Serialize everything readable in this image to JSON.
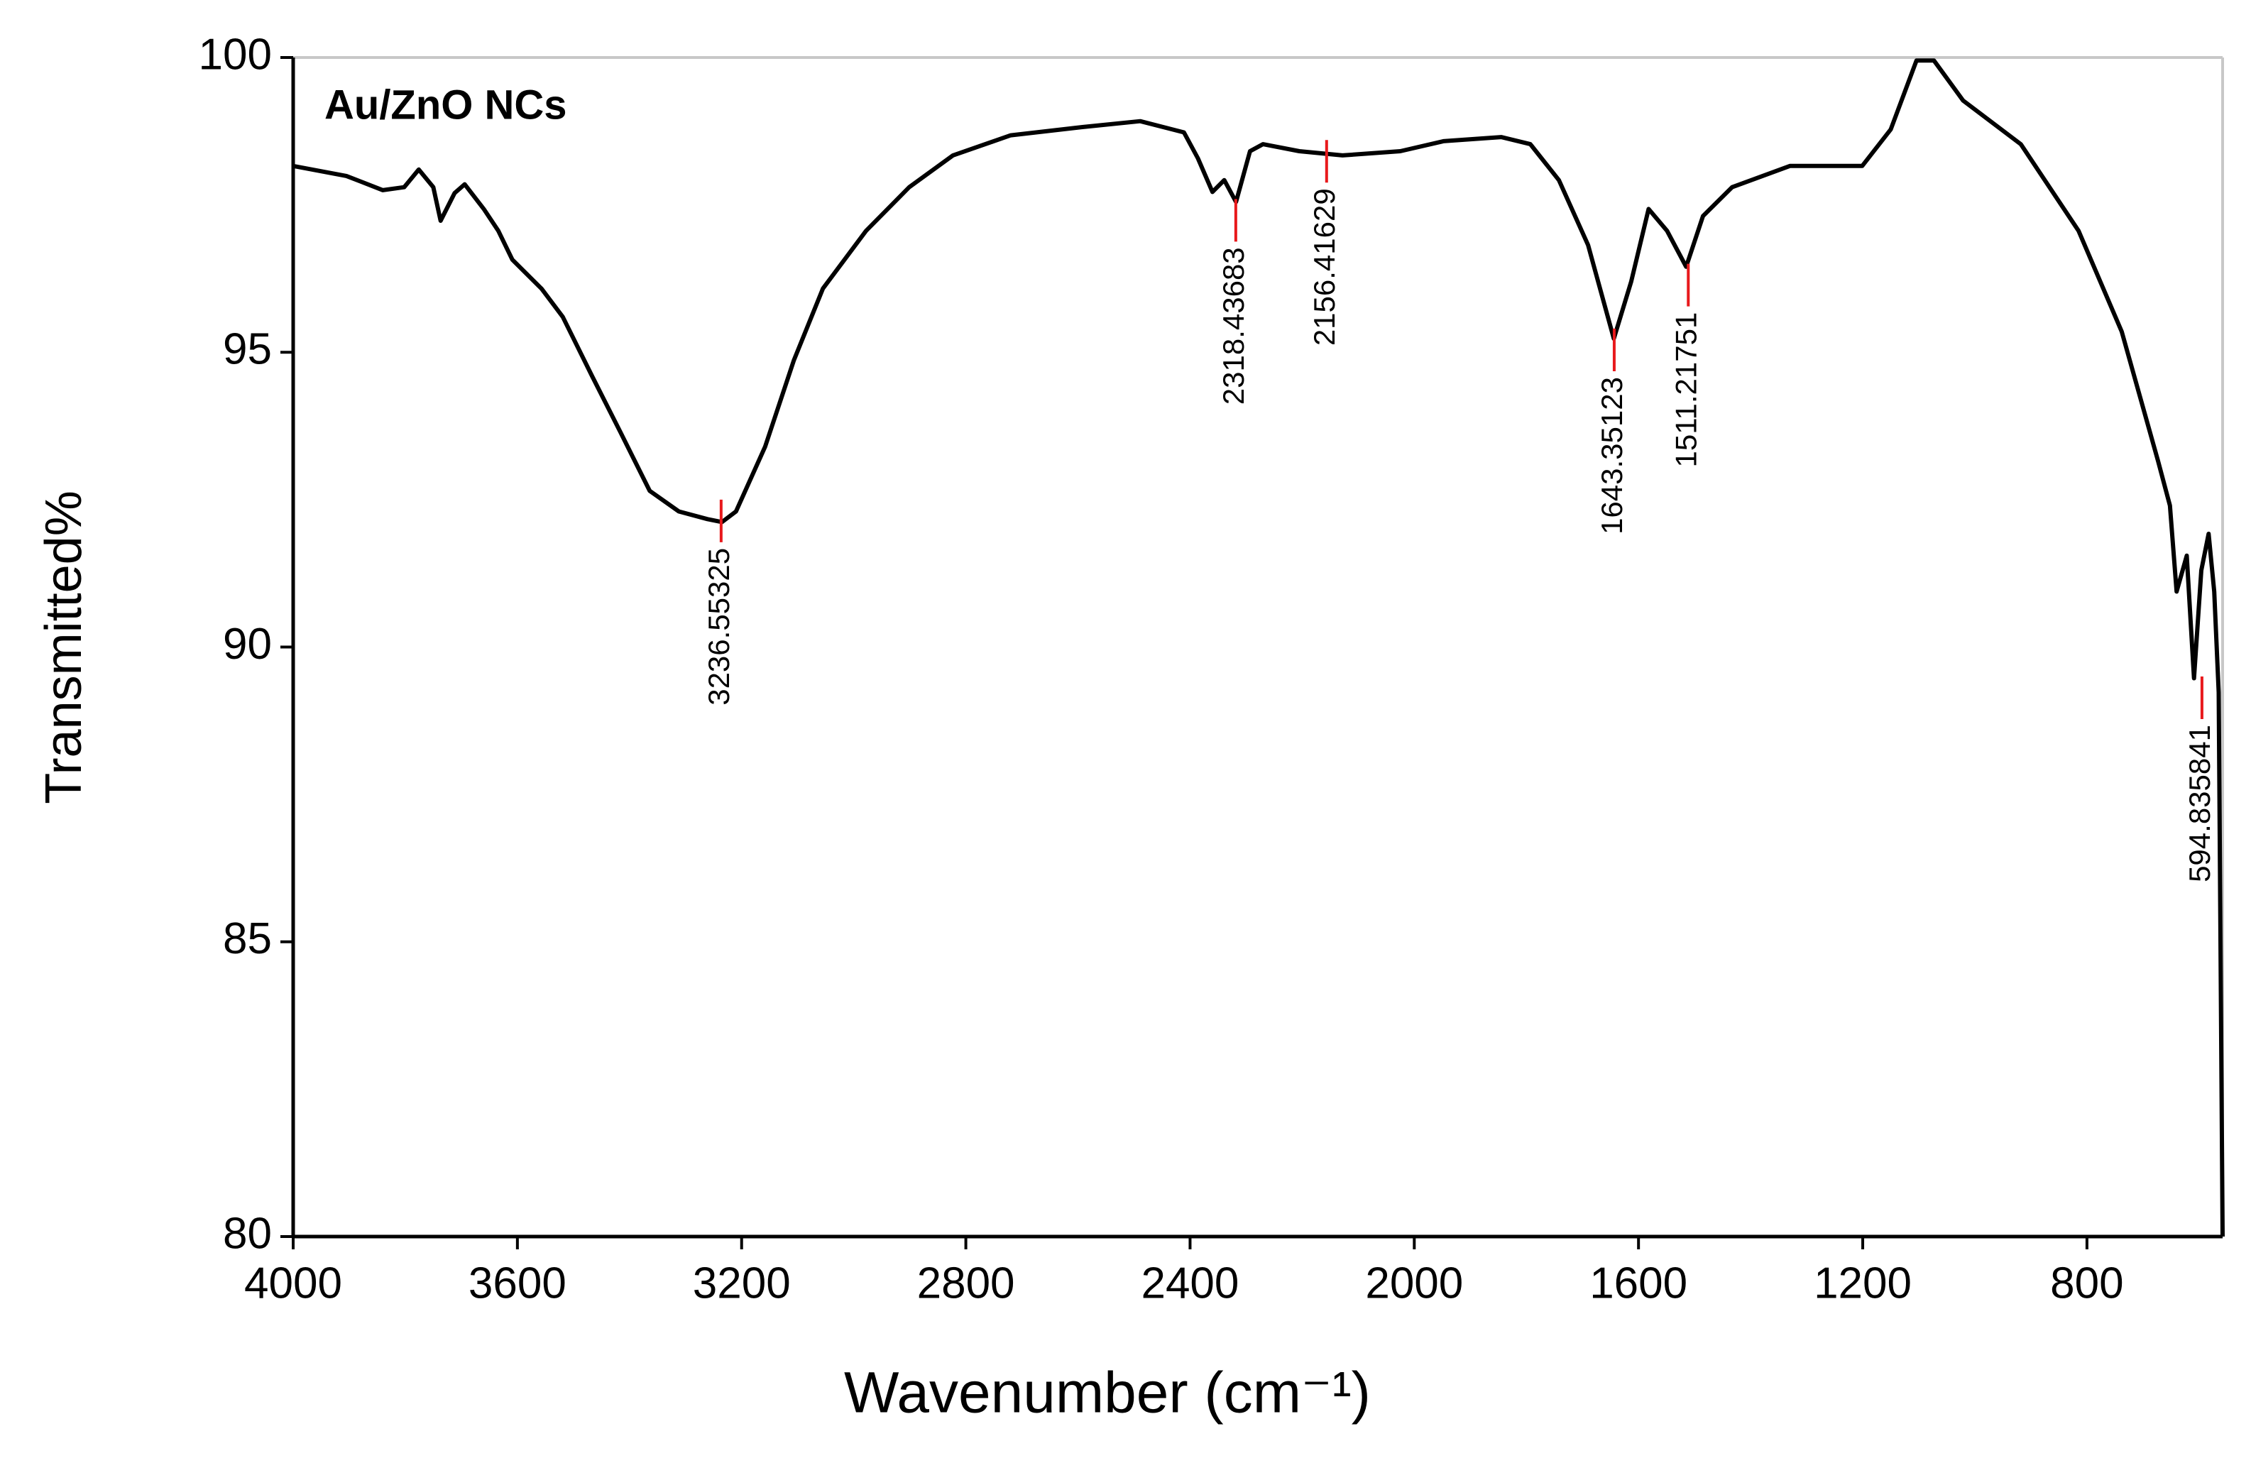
{
  "chart_data": {
    "type": "line",
    "inset_label": "Au/ZnO NCs",
    "x_label": "Wavenumber (cm⁻¹)",
    "y_label": "Transmitted%",
    "color": "#000000",
    "annotation_color": "#e8191c",
    "x": [
      4000,
      3905,
      3840,
      3802,
      3776,
      3750,
      3737,
      3712,
      3694,
      3660,
      3634,
      3609,
      3557,
      3519,
      3467,
      3416,
      3364,
      3312,
      3261,
      3235,
      3210,
      3158,
      3107,
      3055,
      2978,
      2901,
      2823,
      2720,
      2592,
      2489,
      2411,
      2386,
      2360,
      2339,
      2318,
      2293,
      2270,
      2205,
      2128,
      2025,
      1948,
      1845,
      1793,
      1742,
      1690,
      1644,
      1613,
      1582,
      1549,
      1515,
      1485,
      1433,
      1330,
      1201,
      1150,
      1104,
      1073,
      1021,
      918,
      815,
      738,
      673,
      652,
      640,
      622,
      609,
      596,
      583,
      573,
      565,
      558
    ],
    "values": [
      98.16,
      97.99,
      97.75,
      97.8,
      98.1,
      97.8,
      97.23,
      97.7,
      97.85,
      97.43,
      97.06,
      96.57,
      96.08,
      95.6,
      94.6,
      93.64,
      92.65,
      92.3,
      92.17,
      92.12,
      92.3,
      93.4,
      94.86,
      96.08,
      97.06,
      97.8,
      98.34,
      98.68,
      98.82,
      98.92,
      98.73,
      98.29,
      97.72,
      97.92,
      97.55,
      98.41,
      98.53,
      98.41,
      98.34,
      98.41,
      98.58,
      98.65,
      98.53,
      97.92,
      96.82,
      95.23,
      96.2,
      97.43,
      97.06,
      96.45,
      97.31,
      97.8,
      98.16,
      98.16,
      98.78,
      99.95,
      99.95,
      99.27,
      98.53,
      97.06,
      95.35,
      93.15,
      92.4,
      90.94,
      91.55,
      89.47,
      91.3,
      91.92,
      90.94,
      89.23,
      80
    ],
    "annotations": [
      {
        "x": 3236.55325,
        "y": 92.5
      },
      {
        "x": 2318.43683,
        "y": 97.6
      },
      {
        "x": 2156.41629,
        "y": 98.6
      },
      {
        "x": 1643.35123,
        "y": 95.4
      },
      {
        "x": 1511.21751,
        "y": 96.5
      },
      {
        "x": 594.835841,
        "y": 89.5
      }
    ],
    "xlim": [
      4000,
      558
    ],
    "xticks": [
      4000,
      3600,
      3200,
      2800,
      2400,
      2000,
      1600,
      1200,
      800
    ],
    "ylim": [
      80,
      100
    ],
    "yticks": [
      80,
      85,
      90,
      95,
      100
    ]
  }
}
